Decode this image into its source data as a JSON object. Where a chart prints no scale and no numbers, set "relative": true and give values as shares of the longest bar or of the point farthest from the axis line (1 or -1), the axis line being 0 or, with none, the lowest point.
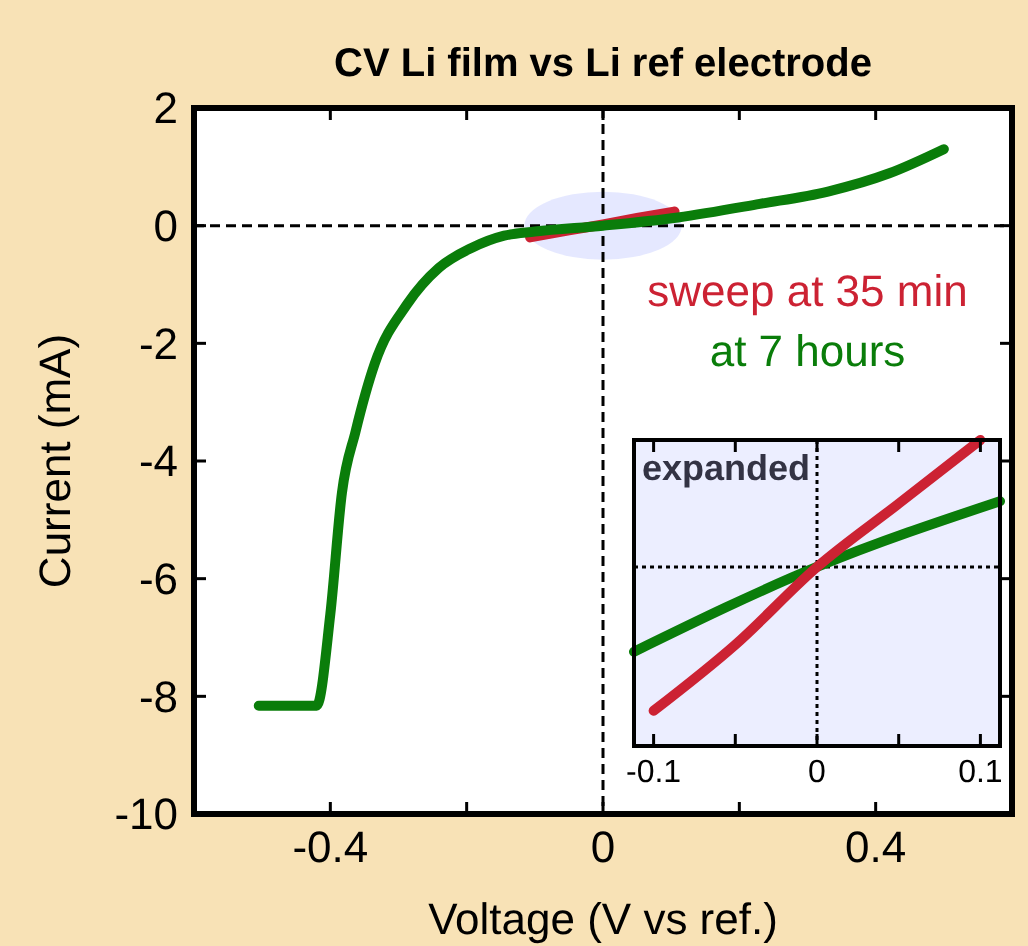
{
  "chart_data": [
    {
      "type": "line",
      "title": "CV Li film vs Li ref electrode",
      "xlabel": "Voltage (V vs ref.)",
      "ylabel": "Current (mA)",
      "xlim": [
        -0.6,
        0.6
      ],
      "ylim": [
        -10,
        2
      ],
      "xticks": [
        -0.4,
        {
          "value": -0.2,
          "label": null
        },
        0,
        {
          "value": 0.2,
          "label": null
        },
        0.4
      ],
      "yticks": [
        -10,
        -8,
        -6,
        -4,
        -2,
        0,
        2
      ],
      "grid": false,
      "marker": "none",
      "line_style": "solid",
      "ref_lines": [
        {
          "axis": "x",
          "value": 0,
          "line_style": "dashed",
          "color": "#000000"
        },
        {
          "axis": "y",
          "value": 0,
          "line_style": "dashed",
          "color": "#000000"
        }
      ],
      "series": [
        {
          "name": "sweep at 35 min",
          "color": "#cc2233",
          "x": [
            -0.107,
            -0.05,
            0,
            0.05,
            0.105
          ],
          "values": [
            -0.2,
            -0.08,
            0.02,
            0.13,
            0.24
          ]
        },
        {
          "name": "at 7 hours",
          "color": "#0a7d0a",
          "x": [
            -0.505,
            -0.42,
            -0.4,
            -0.383,
            -0.363,
            -0.335,
            -0.287,
            -0.241,
            -0.193,
            -0.145,
            -0.1,
            0,
            0.11,
            0.23,
            0.33,
            0.42,
            0.5
          ],
          "values": [
            -8.16,
            -8.16,
            -6.6,
            -4.54,
            -3.5,
            -2.35,
            -1.33,
            -0.72,
            -0.38,
            -0.17,
            -0.1,
            0,
            0.14,
            0.37,
            0.58,
            0.89,
            1.3
          ]
        }
      ]
    },
    {
      "type": "line",
      "title": "expanded",
      "relative": true,
      "xlim": [
        -0.112,
        0.112
      ],
      "xticks": [
        -0.1,
        {
          "value": -0.05,
          "label": null
        },
        0,
        {
          "value": 0.05,
          "label": null
        },
        0.1
      ],
      "grid": false,
      "marker": "none",
      "line_style": "solid",
      "ref_lines": [
        {
          "axis": "x",
          "value": 0,
          "line_style": "dotted",
          "color": "#000000"
        },
        {
          "axis": "y",
          "value": 0.585,
          "line_style": "dotted",
          "color": "#000000"
        }
      ],
      "series": [
        {
          "color": "#0a7d0a",
          "x": [
            -0.112,
            0,
            0.112
          ],
          "values": [
            0.308,
            0.585,
            0.8
          ]
        },
        {
          "color": "#cc2233",
          "x": [
            -0.1,
            -0.05,
            0,
            0.05,
            0.1
          ],
          "values": [
            0.115,
            0.331,
            0.585,
            0.792,
            1
          ]
        }
      ]
    }
  ]
}
